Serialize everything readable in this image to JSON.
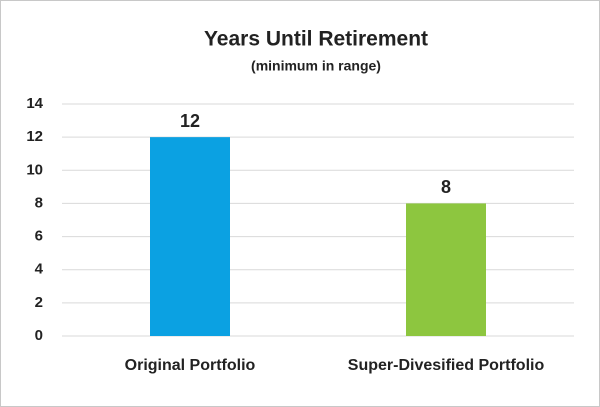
{
  "chart_data": {
    "type": "bar",
    "title": "Years Until Retirement",
    "subtitle": "(minimum in range)",
    "categories": [
      "Original Portfolio",
      "Super-Divesified Portfolio"
    ],
    "values": [
      12,
      8
    ],
    "colors": [
      "#0ba1e2",
      "#8dc63f"
    ],
    "ylim": [
      0,
      14
    ],
    "yticks": [
      0,
      2,
      4,
      6,
      8,
      10,
      12,
      14
    ],
    "grid": true
  }
}
